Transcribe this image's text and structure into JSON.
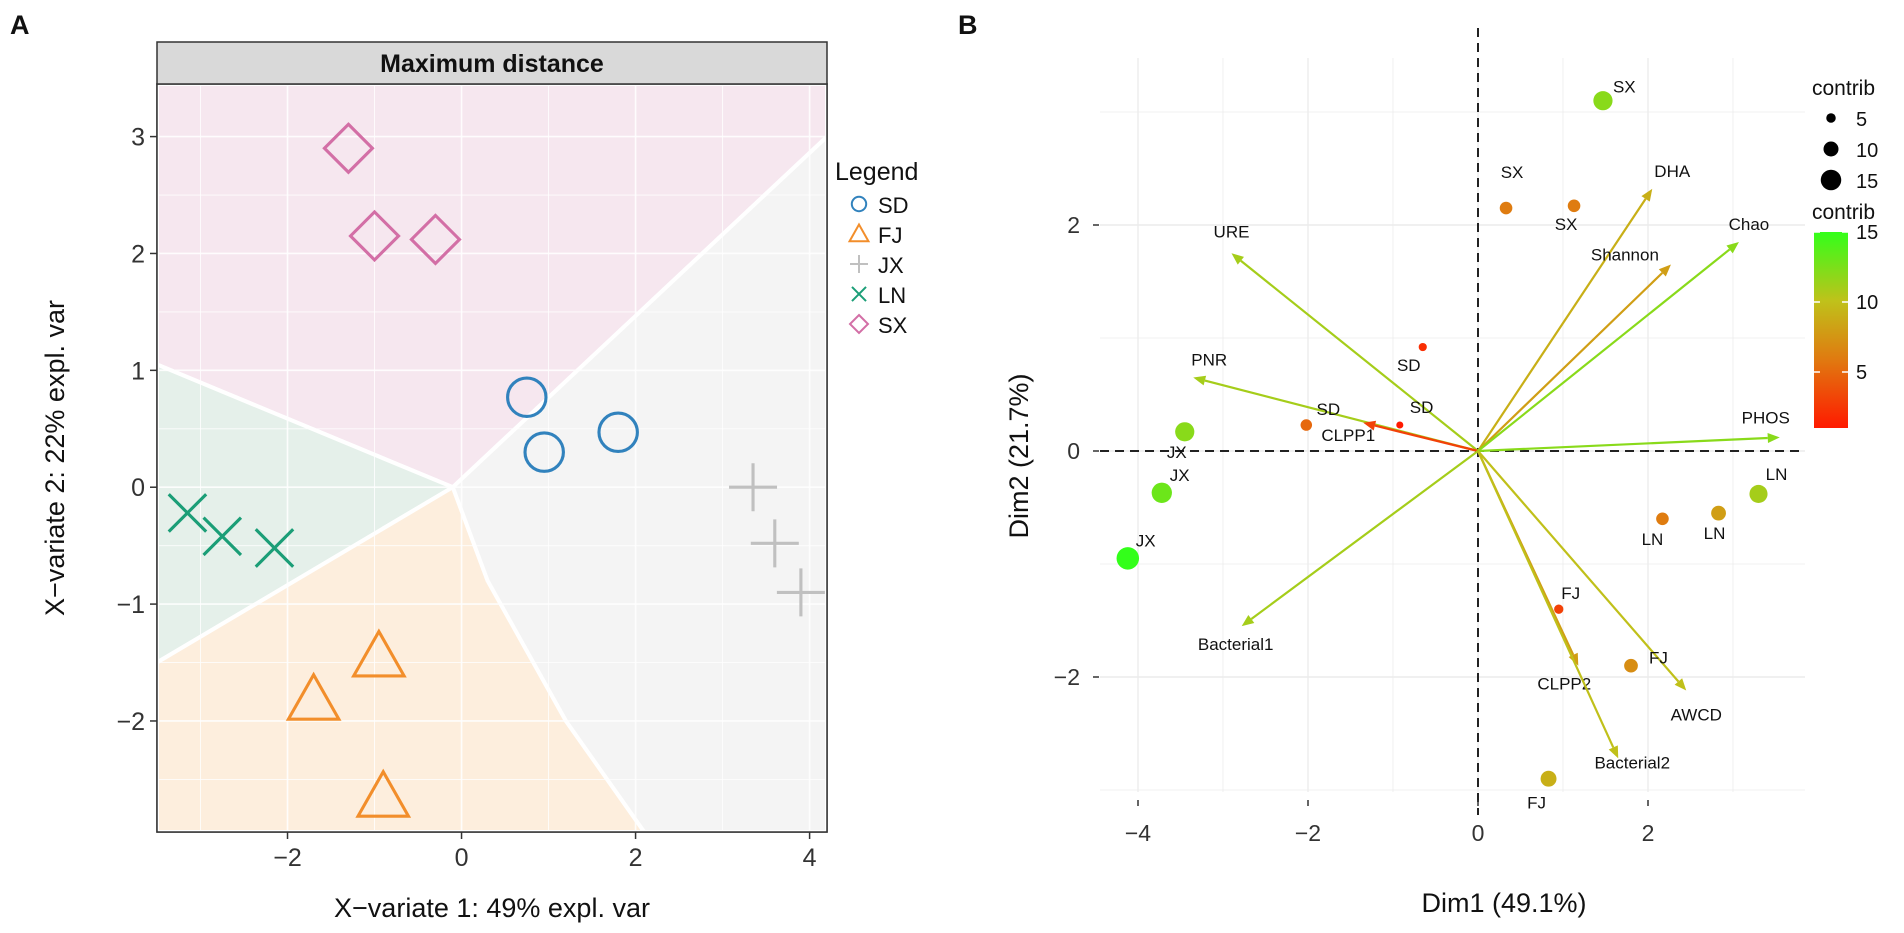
{
  "chart_data": [
    {
      "type": "scatter",
      "panel_label": "A",
      "title": "Maximum distance",
      "xlabel": "X−variate 1: 49% expl. var",
      "ylabel": "X−variate 2: 22% expl. var",
      "xlim": [
        -3.5,
        4.2
      ],
      "ylim": [
        -2.95,
        3.45
      ],
      "x_ticks": [
        -2,
        0,
        2,
        4
      ],
      "x_tick_labels": [
        "−2",
        "0",
        "2",
        "4"
      ],
      "y_ticks": [
        -2,
        -1,
        0,
        1,
        2,
        3
      ],
      "y_tick_labels": [
        "−2",
        "−1",
        "0",
        "1",
        "2",
        "3"
      ],
      "grid": true,
      "legend_title": "Legend",
      "legend_position": "right",
      "colors": {
        "SD": "#3182bd",
        "FJ": "#f28e2b",
        "JX": "#c0c0c0",
        "LN": "#1b9e77",
        "SX": "#d36fa6"
      },
      "region_colors": {
        "SD": "#f4f4f4",
        "FJ": "#fdeedd",
        "JX": "#f4f4f4",
        "LN": "#e5f0ea",
        "SX": "#f6e7ef"
      },
      "series": [
        {
          "name": "SD",
          "marker": "circle",
          "points": [
            [
              0.75,
              0.77
            ],
            [
              0.95,
              0.3
            ],
            [
              1.8,
              0.47
            ]
          ]
        },
        {
          "name": "FJ",
          "marker": "triangle",
          "points": [
            [
              -0.95,
              -1.45
            ],
            [
              -1.7,
              -1.82
            ],
            [
              -0.9,
              -2.65
            ]
          ]
        },
        {
          "name": "JX",
          "marker": "plus",
          "points": [
            [
              3.35,
              0.0
            ],
            [
              3.6,
              -0.48
            ],
            [
              3.9,
              -0.9
            ]
          ]
        },
        {
          "name": "LN",
          "marker": "x",
          "points": [
            [
              -3.15,
              -0.22
            ],
            [
              -2.75,
              -0.42
            ],
            [
              -2.15,
              -0.52
            ]
          ]
        },
        {
          "name": "SX",
          "marker": "diamond",
          "points": [
            [
              -1.3,
              2.9
            ],
            [
              -1.0,
              2.15
            ],
            [
              -0.3,
              2.12
            ]
          ]
        }
      ]
    },
    {
      "type": "biplot",
      "panel_label": "B",
      "xlabel": "Dim1 (49.1%)",
      "ylabel": "Dim2 (21.7%)",
      "xlim": [
        -4.5,
        3.9
      ],
      "ylim": [
        -3.05,
        3.45
      ],
      "x_ticks": [
        -4,
        -2,
        0,
        2
      ],
      "x_tick_labels": [
        "−4",
        "−2",
        "0",
        "2"
      ],
      "y_ticks": [
        -2,
        0,
        2
      ],
      "y_tick_labels": [
        "−2",
        "0",
        "2"
      ],
      "grid": true,
      "legend_size_title": "contrib",
      "legend_size_labels": [
        "5",
        "10",
        "15"
      ],
      "legend_color_title": "contrib",
      "legend_color_labels": [
        "15",
        "10",
        "5"
      ],
      "colorbar_range": [
        1,
        15
      ],
      "points": [
        {
          "label": "SX",
          "x": 1.47,
          "y": 3.1,
          "contrib": 12
        },
        {
          "label": "SX",
          "x": 0.33,
          "y": 2.15,
          "contrib": 6
        },
        {
          "label": "SX",
          "x": 1.13,
          "y": 2.17,
          "contrib": 6
        },
        {
          "label": "SD",
          "x": -0.65,
          "y": 0.92,
          "contrib": 2
        },
        {
          "label": "SD",
          "x": -2.02,
          "y": 0.23,
          "contrib": 5
        },
        {
          "label": "SD",
          "x": -0.92,
          "y": 0.23,
          "contrib": 1
        },
        {
          "label": "JX",
          "x": -3.45,
          "y": 0.17,
          "contrib": 12
        },
        {
          "label": "JX",
          "x": -3.72,
          "y": -0.37,
          "contrib": 13
        },
        {
          "label": "JX",
          "x": -4.12,
          "y": -0.95,
          "contrib": 15
        },
        {
          "label": "LN",
          "x": 3.3,
          "y": -0.38,
          "contrib": 11
        },
        {
          "label": "LN",
          "x": 2.17,
          "y": -0.6,
          "contrib": 6
        },
        {
          "label": "LN",
          "x": 2.83,
          "y": -0.55,
          "contrib": 8
        },
        {
          "label": "FJ",
          "x": 0.95,
          "y": -1.4,
          "contrib": 3
        },
        {
          "label": "FJ",
          "x": 1.8,
          "y": -1.9,
          "contrib": 7
        },
        {
          "label": "FJ",
          "x": 0.83,
          "y": -2.9,
          "contrib": 9
        }
      ],
      "variables": [
        {
          "label": "URE",
          "x": -2.9,
          "y": 1.75,
          "contrib": 11
        },
        {
          "label": "PNR",
          "x": -3.35,
          "y": 0.65,
          "contrib": 11
        },
        {
          "label": "CLPP1",
          "x": -1.35,
          "y": 0.25,
          "contrib": 3
        },
        {
          "label": "Bacterial1",
          "x": -2.78,
          "y": -1.55,
          "contrib": 11
        },
        {
          "label": "DHA",
          "x": 2.05,
          "y": 2.32,
          "contrib": 9
        },
        {
          "label": "Shannon",
          "x": 2.27,
          "y": 1.65,
          "contrib": 8
        },
        {
          "label": "Chao",
          "x": 3.07,
          "y": 1.85,
          "contrib": 12
        },
        {
          "label": "PHOS",
          "x": 3.55,
          "y": 0.12,
          "contrib": 12
        },
        {
          "label": "AWCD",
          "x": 2.45,
          "y": -2.12,
          "contrib": 10
        },
        {
          "label": "CLPP2",
          "x": 1.18,
          "y": -1.9,
          "contrib": 8
        },
        {
          "label": "Bacterial2",
          "x": 1.65,
          "y": -2.72,
          "contrib": 10
        }
      ]
    }
  ]
}
